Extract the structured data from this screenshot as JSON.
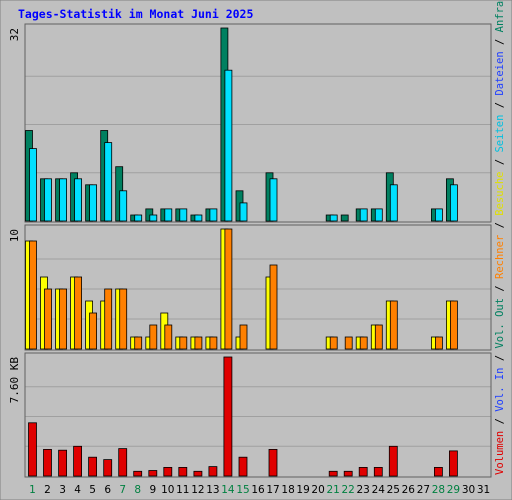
{
  "chart_data": {
    "type": "bar",
    "title": "Tages-Statistik im Monat Juni 2025",
    "days": [
      "1",
      "2",
      "3",
      "4",
      "5",
      "6",
      "7",
      "8",
      "9",
      "10",
      "11",
      "12",
      "13",
      "14",
      "15",
      "16",
      "17",
      "18",
      "19",
      "20",
      "21",
      "22",
      "23",
      "24",
      "25",
      "26",
      "27",
      "28",
      "29",
      "30",
      "31"
    ],
    "weekend_days": [
      "1",
      "7",
      "8",
      "14",
      "15",
      "21",
      "22",
      "28",
      "29"
    ],
    "panels": [
      {
        "id": "requests",
        "max_label": "32",
        "max": 32,
        "series": [
          {
            "name": "Anfragen",
            "color": "#008060",
            "values": [
              15,
              7,
              7,
              8,
              6,
              15,
              9,
              1,
              2,
              2,
              2,
              1,
              2,
              32,
              5,
              0,
              8,
              0,
              0,
              0,
              1,
              1,
              2,
              2,
              8,
              0,
              0,
              2,
              7,
              0,
              0
            ]
          },
          {
            "name": "Dateien",
            "color": "#00e0ff",
            "values": [
              12,
              7,
              7,
              7,
              6,
              13,
              5,
              1,
              1,
              2,
              2,
              1,
              2,
              25,
              3,
              0,
              7,
              0,
              0,
              0,
              1,
              0,
              2,
              2,
              6,
              0,
              0,
              2,
              6,
              0,
              0
            ]
          }
        ]
      },
      {
        "id": "visits",
        "max_label": "10",
        "max": 10,
        "series": [
          {
            "name": "Besuche",
            "color": "#ffff00",
            "values": [
              9,
              6,
              5,
              6,
              4,
              4,
              5,
              1,
              1,
              3,
              1,
              1,
              1,
              10,
              1,
              0,
              6,
              0,
              0,
              0,
              1,
              0,
              1,
              2,
              4,
              0,
              0,
              1,
              4,
              0,
              0
            ]
          },
          {
            "name": "Rechner",
            "color": "#ff8000",
            "values": [
              9,
              5,
              5,
              6,
              3,
              5,
              5,
              1,
              2,
              2,
              1,
              1,
              1,
              10,
              2,
              0,
              7,
              0,
              0,
              0,
              1,
              1,
              1,
              2,
              4,
              0,
              0,
              1,
              4,
              0,
              0
            ]
          }
        ]
      },
      {
        "id": "volume",
        "max_label": "7.60 KB",
        "max": 7.6,
        "series": [
          {
            "name": "Volumen",
            "color": "#e00000",
            "values": [
              3.4,
              1.7,
              1.65,
              1.9,
              1.2,
              1.05,
              1.75,
              0.3,
              0.35,
              0.55,
              0.55,
              0.3,
              0.6,
              7.6,
              1.2,
              0,
              1.7,
              0,
              0,
              0,
              0.3,
              0.3,
              0.55,
              0.55,
              1.9,
              0,
              0,
              0.55,
              1.6,
              0,
              0
            ]
          }
        ]
      }
    ],
    "right_legend": [
      {
        "text": "Volumen",
        "color": "#e00000"
      },
      {
        "text": " / ",
        "color": "#000000"
      },
      {
        "text": "Vol. In",
        "color": "#2040ff"
      },
      {
        "text": " / ",
        "color": "#000000"
      },
      {
        "text": "Vol. Out",
        "color": "#008060"
      },
      {
        "text": " / ",
        "color": "#000000"
      },
      {
        "text": "Rechner",
        "color": "#ff8000"
      },
      {
        "text": " / ",
        "color": "#000000"
      },
      {
        "text": "Besuche",
        "color": "#e0e000"
      },
      {
        "text": " / ",
        "color": "#000000"
      },
      {
        "text": "Seiten",
        "color": "#00c0e0"
      },
      {
        "text": " / ",
        "color": "#000000"
      },
      {
        "text": "Dateien",
        "color": "#2040ff"
      },
      {
        "text": " / ",
        "color": "#000000"
      },
      {
        "text": "Anfragen",
        "color": "#008060"
      }
    ],
    "colors": {
      "background": "#c0c0c0",
      "title": "#0000ff",
      "weekday_label": "#000000",
      "weekend_label": "#008040"
    }
  }
}
